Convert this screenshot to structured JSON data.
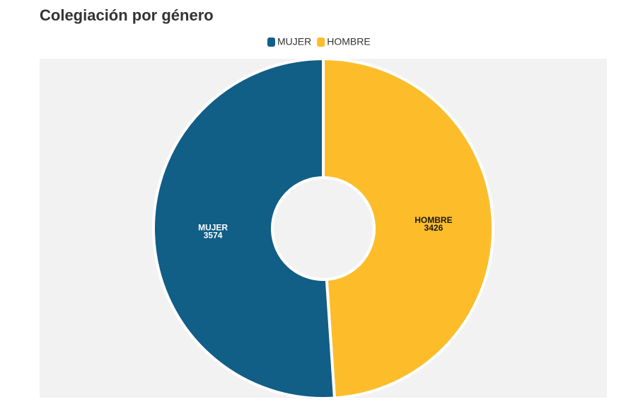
{
  "chart_data": {
    "type": "pie",
    "title": "Colegiación por género",
    "categories": [
      "MUJER",
      "HOMBRE"
    ],
    "values": [
      3574,
      3426
    ],
    "colors": [
      "#115e87",
      "#fdbd2b"
    ],
    "label_colors": [
      "#ffffff",
      "#1a1a1a"
    ],
    "legend": "top"
  }
}
